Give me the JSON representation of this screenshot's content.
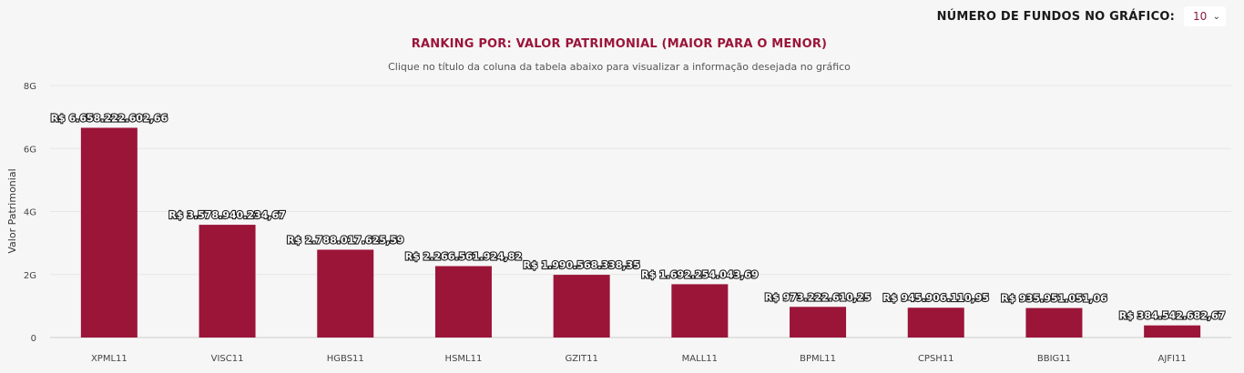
{
  "controls": {
    "fund_count_label": "NÚMERO DE FUNDOS NO GRÁFICO:",
    "fund_count_value": "10"
  },
  "colors": {
    "bar": "#9b1539",
    "title": "#9b1539"
  },
  "chart_data": {
    "type": "bar",
    "title": "RANKING POR: VALOR PATRIMONIAL (MAIOR PARA O MENOR)",
    "subtitle": "Clique no título da coluna da tabela abaixo para visualizar a informação desejada no gráfico",
    "xlabel": "",
    "ylabel": "Valor Patrimonial",
    "ylim": [
      0,
      8000000000
    ],
    "yticks": [
      {
        "value": 0,
        "label": "0"
      },
      {
        "value": 2000000000,
        "label": "2G"
      },
      {
        "value": 4000000000,
        "label": "4G"
      },
      {
        "value": 6000000000,
        "label": "6G"
      },
      {
        "value": 8000000000,
        "label": "8G"
      }
    ],
    "grid": true,
    "categories": [
      "XPML11",
      "VISC11",
      "HGBS11",
      "HSML11",
      "GZIT11",
      "MALL11",
      "BPML11",
      "CPSH11",
      "BBIG11",
      "AJFI11"
    ],
    "values": [
      6658222602.66,
      3578940234.67,
      2788017625.59,
      2266561924.82,
      1990568338.35,
      1692254043.69,
      973222610.25,
      945906110.95,
      935951051.06,
      384542682.67
    ],
    "data_labels": [
      "R$ 6.658.222.602,66",
      "R$ 3.578.940.234,67",
      "R$ 2.788.017.625,59",
      "R$ 2.266.561.924,82",
      "R$ 1.990.568.338,35",
      "R$ 1.692.254.043,69",
      "R$ 973.222.610,25",
      "R$ 945.906.110,95",
      "R$ 935.951.051,06",
      "R$ 384.542.682,67"
    ]
  }
}
